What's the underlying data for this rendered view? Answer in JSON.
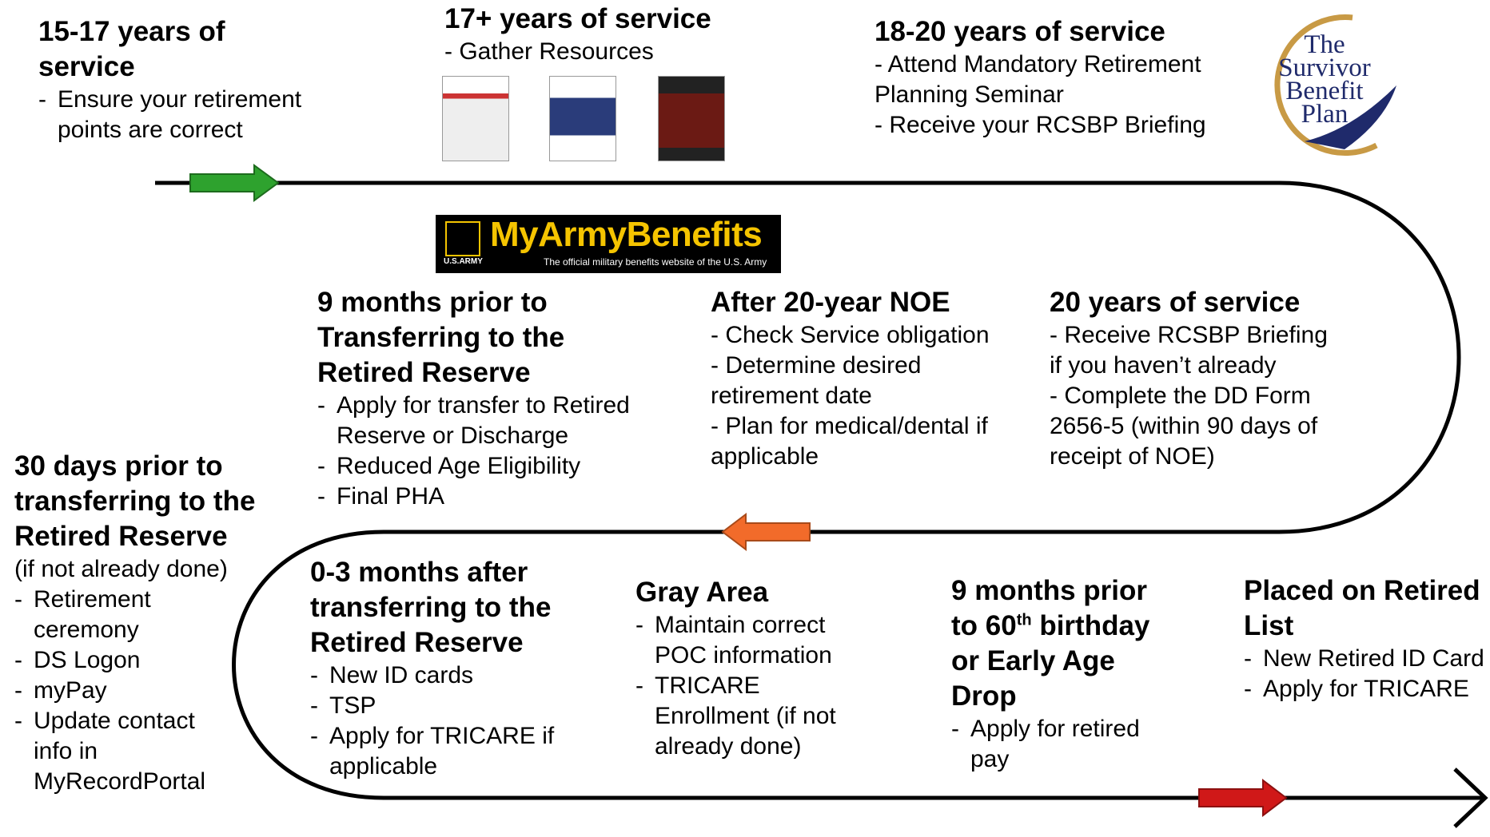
{
  "nodes": [
    {
      "title": "15-17 years of service",
      "items": [
        "Ensure your retirement points are correct"
      ]
    },
    {
      "title": "17+ years of service",
      "items": [
        "Gather Resources"
      ]
    },
    {
      "title": "18-20 years of service",
      "items": [
        "Attend Mandatory Retirement Planning Seminar",
        "Receive your RCSBP Briefing"
      ]
    },
    {
      "title": "9 months prior to Transferring to the Retired Reserve",
      "items": [
        "Apply for transfer to Retired Reserve or Discharge",
        "Reduced Age Eligibility",
        "Final PHA"
      ]
    },
    {
      "title": "After 20-year NOE",
      "items": [
        "Check Service obligation",
        "Determine desired retirement date",
        "Plan for medical/dental if applicable"
      ]
    },
    {
      "title": "20 years of service",
      "items": [
        "Receive RCSBP Briefing if you haven’t already",
        "Complete the DD Form 2656-5 (within 90 days of receipt of NOE)"
      ]
    },
    {
      "title": "30 days prior to transferring to the Retired Reserve",
      "note": "(if not already done)",
      "items": [
        "Retirement ceremony",
        "DS Logon",
        "myPay",
        "Update contact info in MyRecordPortal"
      ]
    },
    {
      "title": "0-3 months after transferring to the Retired Reserve",
      "items": [
        "New ID cards",
        "TSP",
        "Apply for TRICARE if applicable"
      ]
    },
    {
      "title": "Gray Area",
      "items": [
        "Maintain correct POC information",
        "TRICARE Enrollment (if not already done)"
      ]
    },
    {
      "title_parts": [
        "9 months prior to 60",
        "th",
        " birthday or Early Age Drop"
      ],
      "items": [
        "Apply for retired pay"
      ]
    },
    {
      "title": "Placed on Retired List",
      "items": [
        "New Retired ID Card",
        "Apply for TRICARE"
      ]
    }
  ],
  "logos": {
    "myarmybenefits": {
      "name": "MyArmyBenefits",
      "tagline": "The official military benefits website of the U.S. Army",
      "badge": "U.S.ARMY"
    },
    "sbp": {
      "lines": [
        "The",
        "Survivor",
        "Benefit",
        "Plan"
      ]
    }
  }
}
